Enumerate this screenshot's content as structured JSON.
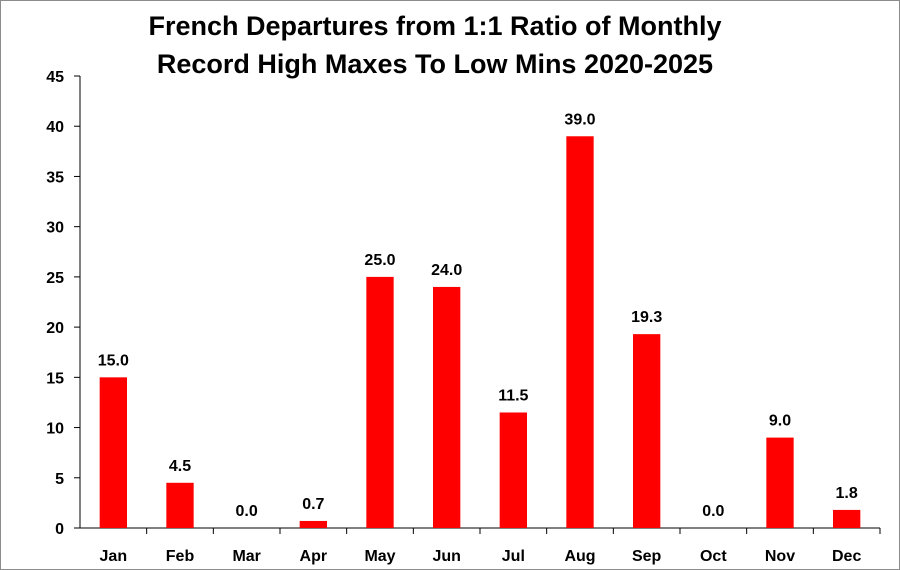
{
  "chart_data": {
    "type": "bar",
    "title": "French Departures from 1:1 Ratio of Monthly Record High Maxes To Low Mins 2020-2025",
    "title_lines": [
      "French Departures from 1:1 Ratio of Monthly",
      "Record High Maxes To Low Mins 2020-2025"
    ],
    "categories": [
      "Jan",
      "Feb",
      "Mar",
      "Apr",
      "May",
      "Jun",
      "Jul",
      "Aug",
      "Sep",
      "Oct",
      "Nov",
      "Dec"
    ],
    "values": [
      15.0,
      4.5,
      0.0,
      0.7,
      25.0,
      24.0,
      11.5,
      39.0,
      19.3,
      0.0,
      9.0,
      1.8
    ],
    "data_labels": [
      "15.0",
      "4.5",
      "0.0",
      "0.7",
      "25.0",
      "24.0",
      "11.5",
      "39.0",
      "19.3",
      "0.0",
      "9.0",
      "1.8"
    ],
    "yticks": [
      0,
      5,
      10,
      15,
      20,
      25,
      30,
      35,
      40,
      45
    ],
    "ylim": [
      0,
      45
    ],
    "xlabel": "",
    "ylabel": "",
    "grid": false,
    "bar_color": "#ff0000"
  }
}
